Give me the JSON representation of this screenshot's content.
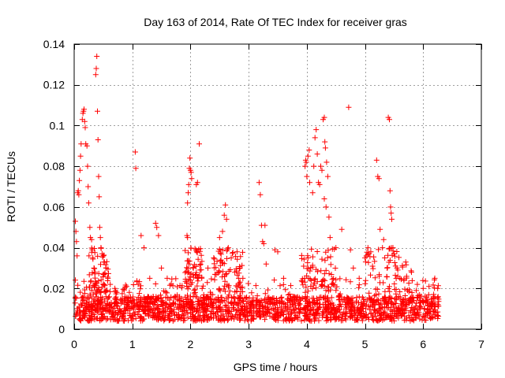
{
  "chart_data": {
    "type": "scatter",
    "title": "Day 163 of 2014, Rate Of TEC Index for receiver gras",
    "xlabel": "GPS time / hours",
    "ylabel": "ROTI / TECUs",
    "xlim": [
      0,
      7
    ],
    "ylim": [
      0,
      0.14
    ],
    "x_ticks": [
      "0",
      "1",
      "2",
      "3",
      "4",
      "5",
      "6",
      "7"
    ],
    "y_ticks": [
      "0",
      "0.02",
      "0.04",
      "0.06",
      "0.08",
      "0.1",
      "0.12",
      "0.14"
    ],
    "grid": true,
    "marker": "+",
    "marker_color": "#ff0000",
    "data_end_hours": 6.27,
    "series": [
      {
        "name": "ROTI",
        "points": [
          [
            0.02,
            0.053
          ],
          [
            0.03,
            0.048
          ],
          [
            0.04,
            0.043
          ],
          [
            0.05,
            0.036
          ],
          [
            0.06,
            0.067
          ],
          [
            0.07,
            0.068
          ],
          [
            0.08,
            0.066
          ],
          [
            0.09,
            0.073
          ],
          [
            0.1,
            0.078
          ],
          [
            0.11,
            0.085
          ],
          [
            0.12,
            0.091
          ],
          [
            0.14,
            0.103
          ],
          [
            0.15,
            0.106
          ],
          [
            0.16,
            0.107
          ],
          [
            0.17,
            0.108
          ],
          [
            0.18,
            0.102
          ],
          [
            0.19,
            0.099
          ],
          [
            0.2,
            0.091
          ],
          [
            0.22,
            0.09
          ],
          [
            0.23,
            0.08
          ],
          [
            0.24,
            0.07
          ],
          [
            0.25,
            0.062
          ],
          [
            0.27,
            0.05
          ],
          [
            0.28,
            0.045
          ],
          [
            0.3,
            0.044
          ],
          [
            0.31,
            0.039
          ],
          [
            0.32,
            0.035
          ],
          [
            0.34,
            0.03
          ],
          [
            0.36,
            0.028
          ],
          [
            0.37,
            0.125
          ],
          [
            0.38,
            0.128
          ],
          [
            0.39,
            0.134
          ],
          [
            0.4,
            0.107
          ],
          [
            0.41,
            0.093
          ],
          [
            0.42,
            0.075
          ],
          [
            0.43,
            0.065
          ],
          [
            0.44,
            0.05
          ],
          [
            0.45,
            0.045
          ],
          [
            0.46,
            0.04
          ],
          [
            0.48,
            0.037
          ],
          [
            0.5,
            0.036
          ],
          [
            0.52,
            0.033
          ],
          [
            0.55,
            0.03
          ],
          [
            0.58,
            0.025
          ],
          [
            0.62,
            0.022
          ],
          [
            0.7,
            0.02
          ],
          [
            1.05,
            0.087
          ],
          [
            1.06,
            0.079
          ],
          [
            1.1,
            0.022
          ],
          [
            1.15,
            0.046
          ],
          [
            1.2,
            0.04
          ],
          [
            1.3,
            0.025
          ],
          [
            1.4,
            0.052
          ],
          [
            1.42,
            0.05
          ],
          [
            1.45,
            0.046
          ],
          [
            1.5,
            0.03
          ],
          [
            1.6,
            0.025
          ],
          [
            1.95,
            0.062
          ],
          [
            1.96,
            0.067
          ],
          [
            1.97,
            0.071
          ],
          [
            1.98,
            0.079
          ],
          [
            1.99,
            0.084
          ],
          [
            2.0,
            0.078
          ],
          [
            2.01,
            0.077
          ],
          [
            2.02,
            0.074
          ],
          [
            1.94,
            0.046
          ],
          [
            1.95,
            0.045
          ],
          [
            2.05,
            0.03
          ],
          [
            2.1,
            0.071
          ],
          [
            2.12,
            0.072
          ],
          [
            2.15,
            0.091
          ],
          [
            2.2,
            0.02
          ],
          [
            2.3,
            0.03
          ],
          [
            2.4,
            0.035
          ],
          [
            2.5,
            0.045
          ],
          [
            2.55,
            0.048
          ],
          [
            2.58,
            0.056
          ],
          [
            2.6,
            0.061
          ],
          [
            2.62,
            0.054
          ],
          [
            2.65,
            0.04
          ],
          [
            2.7,
            0.035
          ],
          [
            2.8,
            0.038
          ],
          [
            2.85,
            0.03
          ],
          [
            2.9,
            0.025
          ],
          [
            3.18,
            0.072
          ],
          [
            3.2,
            0.066
          ],
          [
            3.22,
            0.051
          ],
          [
            3.24,
            0.043
          ],
          [
            3.26,
            0.042
          ],
          [
            3.28,
            0.051
          ],
          [
            3.3,
            0.032
          ],
          [
            3.45,
            0.039
          ],
          [
            3.5,
            0.038
          ],
          [
            3.6,
            0.025
          ],
          [
            3.97,
            0.08
          ],
          [
            3.98,
            0.083
          ],
          [
            3.99,
            0.082
          ],
          [
            4.0,
            0.075
          ],
          [
            4.02,
            0.085
          ],
          [
            4.04,
            0.088
          ],
          [
            4.05,
            0.072
          ],
          [
            4.1,
            0.067
          ],
          [
            4.12,
            0.08
          ],
          [
            4.14,
            0.094
          ],
          [
            4.16,
            0.098
          ],
          [
            4.18,
            0.086
          ],
          [
            4.2,
            0.072
          ],
          [
            4.22,
            0.071
          ],
          [
            4.24,
            0.08
          ],
          [
            4.26,
            0.078
          ],
          [
            4.28,
            0.103
          ],
          [
            4.3,
            0.104
          ],
          [
            4.31,
            0.092
          ],
          [
            4.32,
            0.089
          ],
          [
            4.34,
            0.082
          ],
          [
            4.36,
            0.075
          ],
          [
            4.3,
            0.064
          ],
          [
            4.33,
            0.06
          ],
          [
            4.38,
            0.055
          ],
          [
            4.4,
            0.045
          ],
          [
            4.5,
            0.04
          ],
          [
            4.6,
            0.049
          ],
          [
            4.72,
            0.109
          ],
          [
            4.75,
            0.039
          ],
          [
            4.8,
            0.03
          ],
          [
            4.9,
            0.025
          ],
          [
            5.0,
            0.035
          ],
          [
            5.05,
            0.04
          ],
          [
            5.1,
            0.038
          ],
          [
            5.2,
            0.083
          ],
          [
            5.22,
            0.075
          ],
          [
            5.24,
            0.074
          ],
          [
            5.26,
            0.049
          ],
          [
            5.3,
            0.04
          ],
          [
            5.32,
            0.044
          ],
          [
            5.34,
            0.035
          ],
          [
            5.38,
            0.03
          ],
          [
            5.4,
            0.104
          ],
          [
            5.42,
            0.103
          ],
          [
            5.43,
            0.068
          ],
          [
            5.44,
            0.06
          ],
          [
            5.45,
            0.057
          ],
          [
            5.46,
            0.054
          ],
          [
            5.48,
            0.04
          ],
          [
            5.5,
            0.037
          ],
          [
            5.55,
            0.03
          ],
          [
            5.6,
            0.025
          ],
          [
            5.7,
            0.033
          ],
          [
            5.8,
            0.028
          ],
          [
            5.9,
            0.022
          ],
          [
            6.0,
            0.02
          ],
          [
            6.1,
            0.021
          ],
          [
            6.2,
            0.025
          ],
          [
            6.25,
            0.02
          ]
        ],
        "dense_band": {
          "x_range": [
            0,
            6.27
          ],
          "y_range": [
            0.002,
            0.025
          ],
          "typical": 0.01,
          "count": 1800
        }
      }
    ]
  }
}
